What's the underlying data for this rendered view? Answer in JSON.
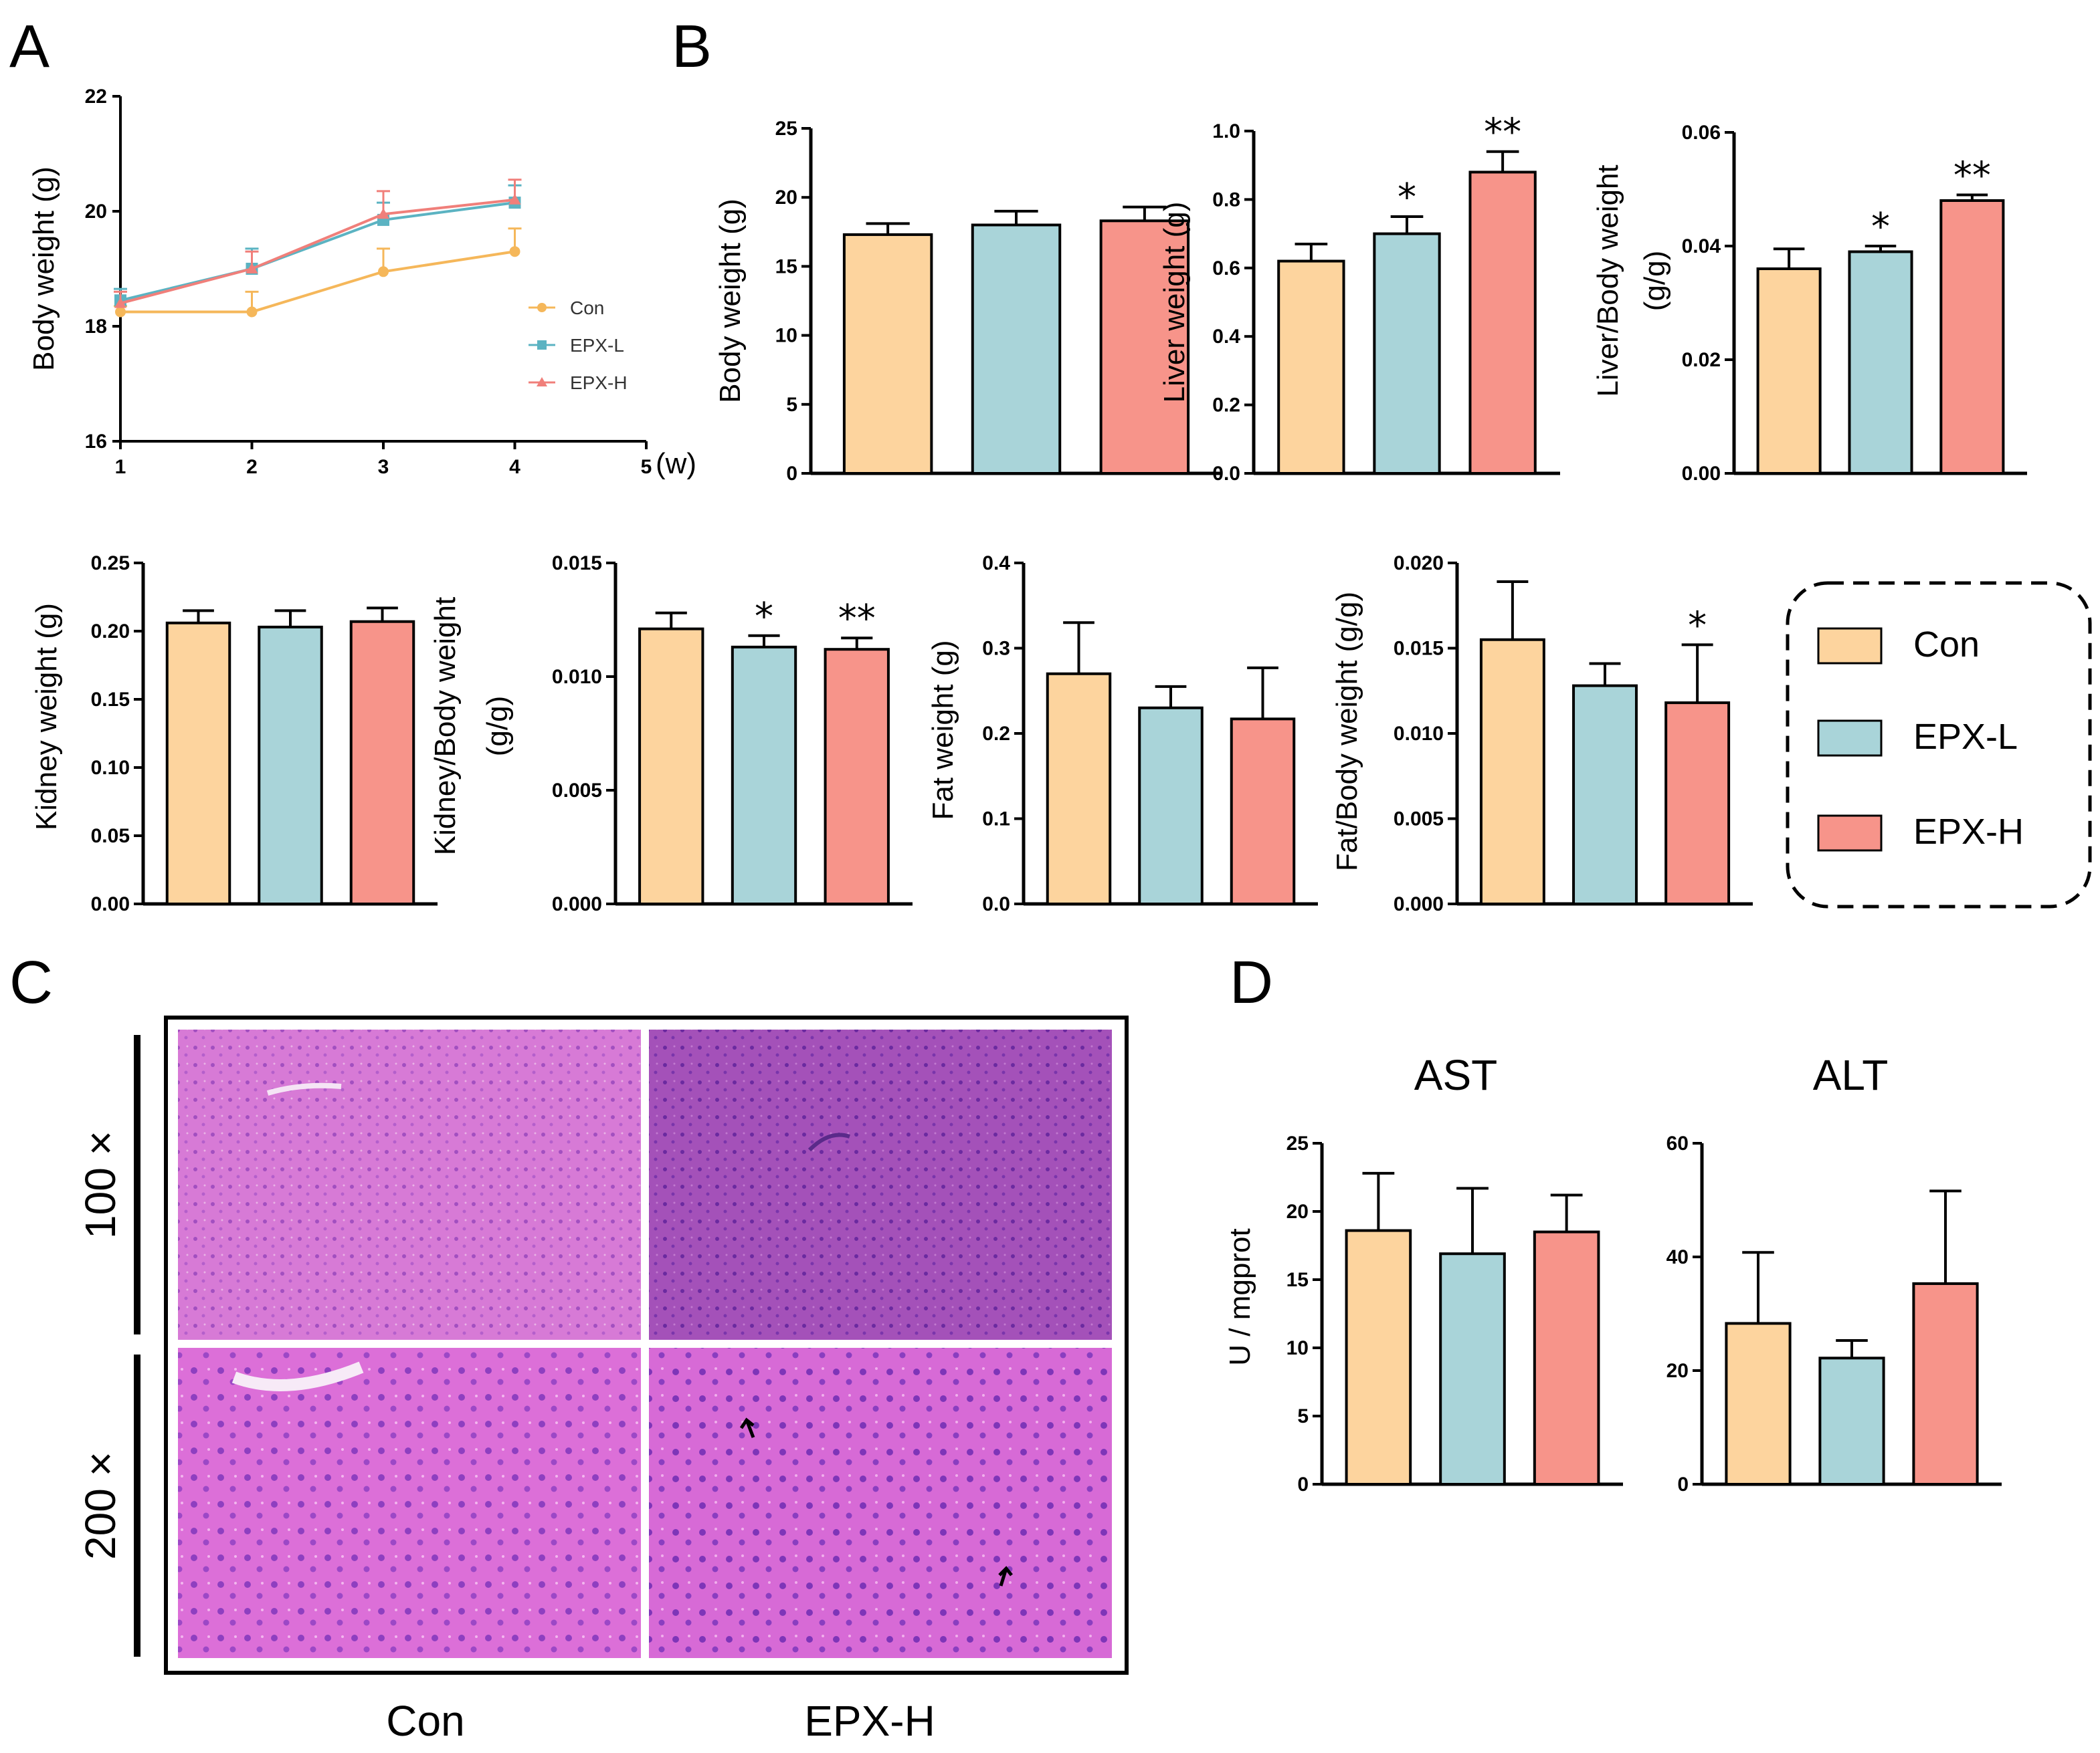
{
  "panel_labels": {
    "a": "A",
    "b": "B",
    "c": "C",
    "d": "D"
  },
  "colors": {
    "con": "#fdd49e",
    "epxl": "#a9d4d9",
    "epxh": "#f7948a",
    "line_con": "#f5b75a",
    "line_epxl": "#5bb3c2",
    "line_epxh": "#f07f7a"
  },
  "legend": [
    "Con",
    "EPX-L",
    "EPX-H"
  ],
  "chart_data": [
    {
      "id": "A",
      "type": "line",
      "title": "",
      "xlabel": "(w)",
      "ylabel": "Body weight (g)",
      "x": [
        1,
        2,
        3,
        4
      ],
      "xticks": [
        "1",
        "2",
        "3",
        "4",
        "5"
      ],
      "xlim": [
        1,
        5
      ],
      "ylim": [
        16,
        22
      ],
      "yticks": [
        "16",
        "18",
        "20",
        "22"
      ],
      "series": [
        {
          "name": "Con",
          "values": [
            18.25,
            18.25,
            18.95,
            19.3
          ],
          "errors": [
            0.1,
            0.35,
            0.4,
            0.4
          ]
        },
        {
          "name": "EPX-L",
          "values": [
            18.45,
            19.0,
            19.85,
            20.15
          ],
          "errors": [
            0.2,
            0.35,
            0.3,
            0.3
          ]
        },
        {
          "name": "EPX-H",
          "values": [
            18.4,
            19.0,
            19.95,
            20.2
          ],
          "errors": [
            0.2,
            0.3,
            0.4,
            0.35
          ]
        }
      ]
    },
    {
      "id": "B1",
      "type": "bar",
      "ylabel": "Body weight (g)",
      "categories": [
        "Con",
        "EPX-L",
        "EPX-H"
      ],
      "values": [
        17.3,
        18.0,
        18.3
      ],
      "errors": [
        0.8,
        1.0,
        1.0
      ],
      "sig": [
        "",
        "",
        ""
      ],
      "ylim": [
        0,
        25
      ],
      "yticks": [
        "0",
        "5",
        "10",
        "15",
        "20",
        "25"
      ]
    },
    {
      "id": "B2",
      "type": "bar",
      "ylabel": "Liver weight (g)",
      "categories": [
        "Con",
        "EPX-L",
        "EPX-H"
      ],
      "values": [
        0.62,
        0.7,
        0.88
      ],
      "errors": [
        0.05,
        0.05,
        0.06
      ],
      "sig": [
        "",
        "*",
        "**"
      ],
      "ylim": [
        0,
        1.0
      ],
      "yticks": [
        "0.0",
        "0.2",
        "0.4",
        "0.6",
        "0.8",
        "1.0"
      ]
    },
    {
      "id": "B3",
      "type": "bar",
      "ylabel": "Liver/Body weight (g/g)",
      "categories": [
        "Con",
        "EPX-L",
        "EPX-H"
      ],
      "values": [
        0.036,
        0.039,
        0.048
      ],
      "errors": [
        0.0035,
        0.001,
        0.001
      ],
      "sig": [
        "",
        "*",
        "**"
      ],
      "ylim": [
        0,
        0.06
      ],
      "yticks": [
        "0.00",
        "0.02",
        "0.04",
        "0.06"
      ]
    },
    {
      "id": "B4",
      "type": "bar",
      "ylabel": "Kidney weight (g)",
      "categories": [
        "Con",
        "EPX-L",
        "EPX-H"
      ],
      "values": [
        0.206,
        0.203,
        0.207
      ],
      "errors": [
        0.009,
        0.012,
        0.01
      ],
      "sig": [
        "",
        "",
        ""
      ],
      "ylim": [
        0,
        0.25
      ],
      "yticks": [
        "0.00",
        "0.05",
        "0.10",
        "0.15",
        "0.20",
        "0.25"
      ]
    },
    {
      "id": "B5",
      "type": "bar",
      "ylabel": "Kidney/Body weight (g/g)",
      "categories": [
        "Con",
        "EPX-L",
        "EPX-H"
      ],
      "values": [
        0.0121,
        0.0113,
        0.0112
      ],
      "errors": [
        0.0007,
        0.0005,
        0.0005
      ],
      "sig": [
        "",
        "*",
        "**"
      ],
      "ylim": [
        0,
        0.015
      ],
      "yticks": [
        "0.000",
        "0.005",
        "0.010",
        "0.015"
      ]
    },
    {
      "id": "B6",
      "type": "bar",
      "ylabel": "Fat weight (g)",
      "categories": [
        "Con",
        "EPX-L",
        "EPX-H"
      ],
      "values": [
        0.27,
        0.23,
        0.217
      ],
      "errors": [
        0.06,
        0.025,
        0.06
      ],
      "sig": [
        "",
        "",
        ""
      ],
      "ylim": [
        0,
        0.4
      ],
      "yticks": [
        "0.0",
        "0.1",
        "0.2",
        "0.3",
        "0.4"
      ]
    },
    {
      "id": "B7",
      "type": "bar",
      "ylabel": "Fat/Body weight (g/g)",
      "categories": [
        "Con",
        "EPX-L",
        "EPX-H"
      ],
      "values": [
        0.0155,
        0.0128,
        0.0118
      ],
      "errors": [
        0.0034,
        0.0013,
        0.0034
      ],
      "sig": [
        "",
        "",
        "*"
      ],
      "ylim": [
        0,
        0.02
      ],
      "yticks": [
        "0.000",
        "0.005",
        "0.010",
        "0.015",
        "0.020"
      ]
    },
    {
      "id": "D1",
      "type": "bar",
      "title": "AST",
      "ylabel": "U / mgprot",
      "categories": [
        "Con",
        "EPX-L",
        "EPX-H"
      ],
      "values": [
        18.6,
        16.9,
        18.5
      ],
      "errors": [
        4.2,
        4.8,
        2.7
      ],
      "sig": [
        "",
        "",
        ""
      ],
      "ylim": [
        0,
        25
      ],
      "yticks": [
        "0",
        "5",
        "10",
        "15",
        "20",
        "25"
      ]
    },
    {
      "id": "D2",
      "type": "bar",
      "title": "ALT",
      "ylabel": "",
      "categories": [
        "Con",
        "EPX-L",
        "EPX-H"
      ],
      "values": [
        28.3,
        22.2,
        35.3
      ],
      "errors": [
        12.5,
        3.1,
        16.3
      ],
      "sig": [
        "",
        "",
        ""
      ],
      "ylim": [
        0,
        60
      ],
      "yticks": [
        "0",
        "20",
        "40",
        "60"
      ]
    }
  ],
  "histology": {
    "row_labels": [
      "100 ×",
      "200 ×"
    ],
    "col_labels": [
      "Con",
      "EPX-H"
    ]
  }
}
